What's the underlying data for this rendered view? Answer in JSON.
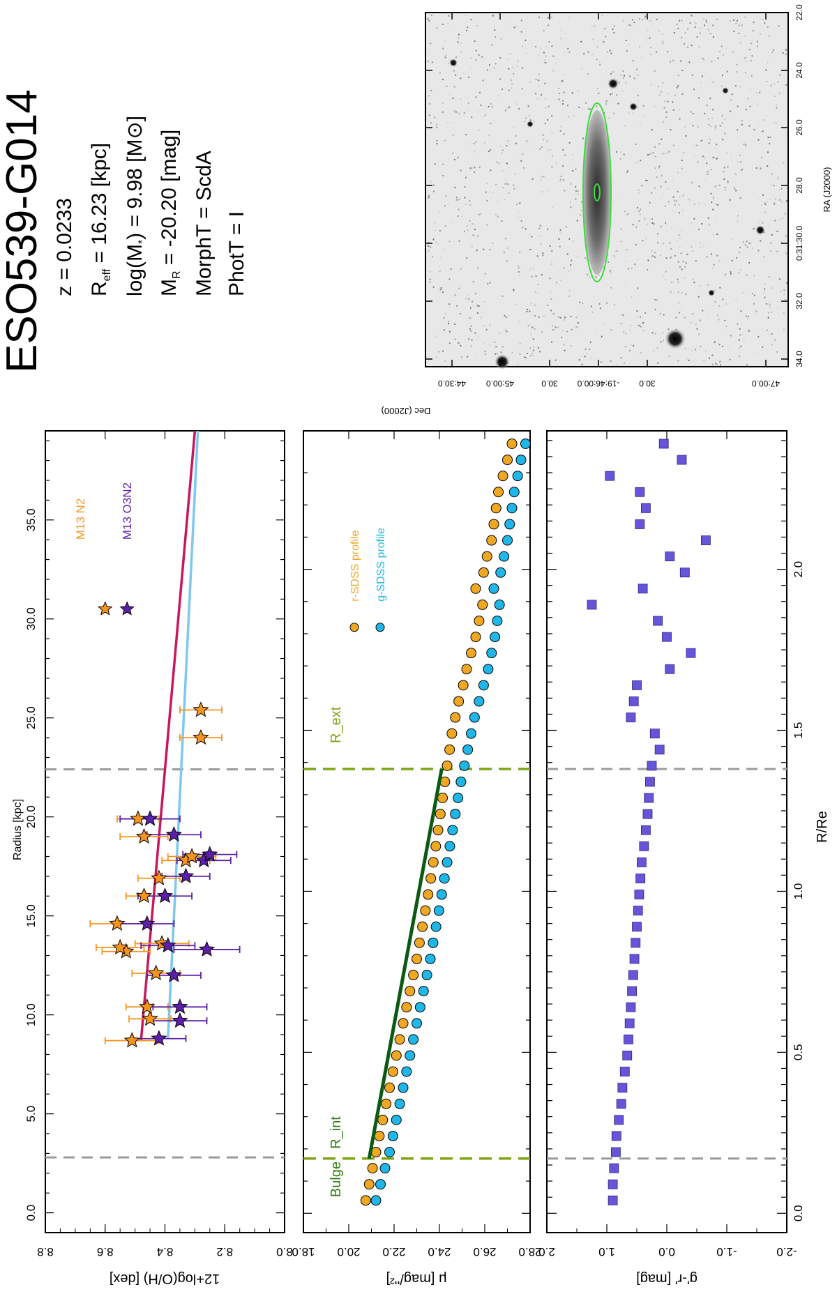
{
  "header": {
    "galaxy_name": "ESO539-G014",
    "lines": [
      {
        "key": "z",
        "prefix": "z =  ",
        "sub": "",
        "mid": "",
        "value": "0.0233"
      },
      {
        "key": "reff",
        "prefix": "R",
        "sub": "eff",
        "mid": " = ",
        "value": "16.23 [kpc]"
      },
      {
        "key": "mass",
        "prefix": "log(M",
        "sub": "*",
        "mid": ") =  ",
        "value": "9.98 [M⊙]"
      },
      {
        "key": "mr",
        "prefix": "M",
        "sub": "R",
        "mid": " =  ",
        "value": "-20.20 [mag]"
      },
      {
        "key": "morph",
        "prefix": "MorphT =  ",
        "sub": "",
        "mid": "",
        "value": "ScdA"
      },
      {
        "key": "phot",
        "prefix": "PhotT = ",
        "sub": "",
        "mid": "",
        "value": "I"
      }
    ]
  },
  "image_panel": {
    "ra_label": "RA (J2000)",
    "dec_label": "Dec (J2000)",
    "ra_ticks": [
      "22.0",
      "24.0",
      "26.0",
      "28.0",
      "0:31:30.0",
      "32.0",
      "34.0"
    ],
    "dec_ticks": [
      "44:30.0",
      "45:00.0",
      "30.0",
      "-19:46:00.0",
      "30.0",
      "47:00.0"
    ]
  },
  "colors": {
    "orange": "#F7941D",
    "purple": "#5B1FA8",
    "magenta": "#C8175D",
    "lightblue": "#7EC8EF",
    "r_profile": "#F0A823",
    "g_profile": "#1FB7E8",
    "fit_line": "#0B5A12",
    "olive": "#7DA512",
    "dashed_gray": "#9A9A9A",
    "squares": "#6655D8"
  },
  "chart_data": [
    {
      "type": "scatter",
      "title": "Radius [kpc]",
      "xlabel": "Radius [kpc]",
      "ylabel": "12+log(O/H) [dex]",
      "xlim": [
        -1.0,
        39.5
      ],
      "ylim": [
        8.0,
        8.8
      ],
      "xticks": [
        "0.0",
        "5.0",
        "10.0",
        "15.0",
        "20.0",
        "25.0",
        "30.0",
        "35.0"
      ],
      "yticks": [
        "8.0",
        "8.2",
        "8.4",
        "8.6",
        "8.8"
      ],
      "vlines": [
        2.8,
        22.4
      ],
      "series": [
        {
          "name": "M13 N2",
          "x": [
            8.7,
            9.8,
            10.4,
            12.1,
            13.2,
            13.4,
            13.6,
            14.6,
            16.0,
            16.9,
            17.8,
            18.0,
            19.0,
            19.9,
            24.0,
            25.4
          ],
          "y": [
            8.51,
            8.45,
            8.46,
            8.43,
            8.53,
            8.55,
            8.41,
            8.56,
            8.47,
            8.42,
            8.33,
            8.31,
            8.47,
            8.49,
            8.28,
            8.28
          ],
          "err": [
            0.09,
            0.07,
            0.07,
            0.08,
            0.08,
            0.08,
            0.09,
            0.09,
            0.06,
            0.07,
            0.08,
            0.08,
            0.08,
            0.07,
            0.07,
            0.07
          ]
        },
        {
          "name": "M13 O3N2",
          "x": [
            8.8,
            9.7,
            10.4,
            12.0,
            13.3,
            13.5,
            14.6,
            16.0,
            17.0,
            17.8,
            18.1,
            19.1,
            19.9
          ],
          "y": [
            8.42,
            8.35,
            8.35,
            8.37,
            8.26,
            8.39,
            8.46,
            8.4,
            8.33,
            8.27,
            8.25,
            8.37,
            8.45
          ],
          "err": [
            0.09,
            0.09,
            0.09,
            0.09,
            0.11,
            0.09,
            0.09,
            0.09,
            0.08,
            0.09,
            0.09,
            0.09,
            0.1
          ]
        }
      ],
      "fits": [
        {
          "name": "N2 gradient",
          "x": [
            8.7,
            39.5
          ],
          "y": [
            8.48,
            8.3
          ]
        },
        {
          "name": "O3N2 gradient",
          "x": [
            8.8,
            39.5
          ],
          "y": [
            8.39,
            8.29
          ]
        }
      ]
    },
    {
      "type": "scatter",
      "xlabel": "R/R_e",
      "ylabel": "μ [mag/''²]",
      "xlim": [
        -0.06,
        2.43
      ],
      "ylim": [
        18.0,
        28.0
      ],
      "yticks": [
        "18.0",
        "20.0",
        "22.0",
        "24.0",
        "26.0",
        "28.0"
      ],
      "vline_labels": [
        "Bulge",
        "R_int",
        "R_ext"
      ],
      "vlines": [
        0.17,
        1.38
      ],
      "series": [
        {
          "name": "r-SDSS profile",
          "x": [
            0.04,
            0.09,
            0.14,
            0.19,
            0.24,
            0.29,
            0.34,
            0.39,
            0.44,
            0.49,
            0.54,
            0.59,
            0.64,
            0.69,
            0.74,
            0.79,
            0.84,
            0.89,
            0.94,
            0.99,
            1.04,
            1.09,
            1.14,
            1.19,
            1.24,
            1.29,
            1.34,
            1.39,
            1.44,
            1.49,
            1.54,
            1.59,
            1.64,
            1.69,
            1.74,
            1.79,
            1.84,
            1.89,
            1.94,
            1.99,
            2.04,
            2.09,
            2.14,
            2.19,
            2.24,
            2.29,
            2.34,
            2.39
          ],
          "y": [
            20.75,
            20.9,
            21.05,
            21.2,
            21.35,
            21.5,
            21.65,
            21.8,
            21.95,
            22.1,
            22.25,
            22.4,
            22.55,
            22.7,
            22.85,
            23.0,
            23.12,
            23.25,
            23.38,
            23.5,
            23.62,
            23.73,
            23.84,
            23.94,
            24.04,
            24.14,
            24.24,
            24.34,
            24.45,
            24.55,
            24.7,
            24.85,
            25.05,
            25.2,
            25.4,
            25.6,
            25.75,
            25.9,
            25.6,
            25.95,
            26.1,
            26.3,
            26.4,
            26.5,
            26.6,
            26.8,
            27.0,
            27.2
          ]
        },
        {
          "name": "g-SDSS profile",
          "x": [
            0.04,
            0.09,
            0.14,
            0.19,
            0.24,
            0.29,
            0.34,
            0.39,
            0.44,
            0.49,
            0.54,
            0.59,
            0.64,
            0.69,
            0.74,
            0.79,
            0.84,
            0.89,
            0.94,
            0.99,
            1.04,
            1.09,
            1.14,
            1.19,
            1.24,
            1.29,
            1.34,
            1.39,
            1.44,
            1.49,
            1.54,
            1.59,
            1.64,
            1.69,
            1.74,
            1.79,
            1.84,
            1.89,
            1.94,
            1.99,
            2.04,
            2.09,
            2.14,
            2.19,
            2.24,
            2.29,
            2.34,
            2.39
          ],
          "y": [
            21.2,
            21.4,
            21.6,
            21.8,
            21.95,
            22.1,
            22.25,
            22.4,
            22.55,
            22.7,
            22.85,
            23.0,
            23.15,
            23.3,
            23.45,
            23.6,
            23.72,
            23.85,
            23.98,
            24.1,
            24.22,
            24.34,
            24.46,
            24.58,
            24.7,
            24.82,
            24.95,
            25.1,
            25.25,
            25.4,
            25.55,
            25.75,
            25.95,
            26.15,
            26.3,
            26.45,
            26.55,
            26.65,
            26.4,
            26.7,
            26.85,
            27.0,
            27.1,
            27.2,
            27.3,
            27.45,
            27.6,
            27.8
          ]
        }
      ],
      "fits": [
        {
          "name": "disk fit",
          "x": [
            0.17,
            1.38
          ],
          "y": [
            20.9,
            24.1
          ]
        }
      ]
    },
    {
      "type": "scatter",
      "xlabel": "R/R_e",
      "ylabel": "g'-r' [mag]",
      "xlim": [
        -0.06,
        2.43
      ],
      "ylim": [
        -2.0,
        2.0
      ],
      "xticks": [
        "0.0",
        "0.5",
        "1.0",
        "1.5",
        "2.0"
      ],
      "yticks": [
        "2.0",
        "1.0",
        "0.0",
        "-1.0",
        "-2.0"
      ],
      "vlines": [
        0.17,
        1.38
      ],
      "series": [
        {
          "name": "g'-r' color",
          "x": [
            0.04,
            0.09,
            0.14,
            0.19,
            0.24,
            0.29,
            0.34,
            0.39,
            0.44,
            0.49,
            0.54,
            0.59,
            0.64,
            0.69,
            0.74,
            0.79,
            0.84,
            0.89,
            0.94,
            0.99,
            1.04,
            1.09,
            1.14,
            1.19,
            1.24,
            1.29,
            1.34,
            1.39,
            1.44,
            1.49,
            1.54,
            1.59,
            1.64,
            1.69,
            1.74,
            1.79,
            1.84,
            1.89,
            1.94,
            1.99,
            2.04,
            2.09,
            2.14,
            2.19,
            2.24,
            2.29,
            2.34,
            2.39
          ],
          "y": [
            0.9,
            0.9,
            0.88,
            0.85,
            0.84,
            0.8,
            0.76,
            0.74,
            0.7,
            0.66,
            0.64,
            0.62,
            0.6,
            0.58,
            0.56,
            0.54,
            0.52,
            0.5,
            0.48,
            0.46,
            0.44,
            0.42,
            0.38,
            0.35,
            0.32,
            0.3,
            0.28,
            0.25,
            0.12,
            0.2,
            0.6,
            0.55,
            0.5,
            -0.05,
            -0.4,
            0.0,
            0.15,
            1.25,
            0.4,
            -0.3,
            -0.05,
            -0.65,
            0.45,
            0.35,
            0.45,
            0.95,
            -0.25,
            0.05
          ]
        }
      ]
    }
  ]
}
